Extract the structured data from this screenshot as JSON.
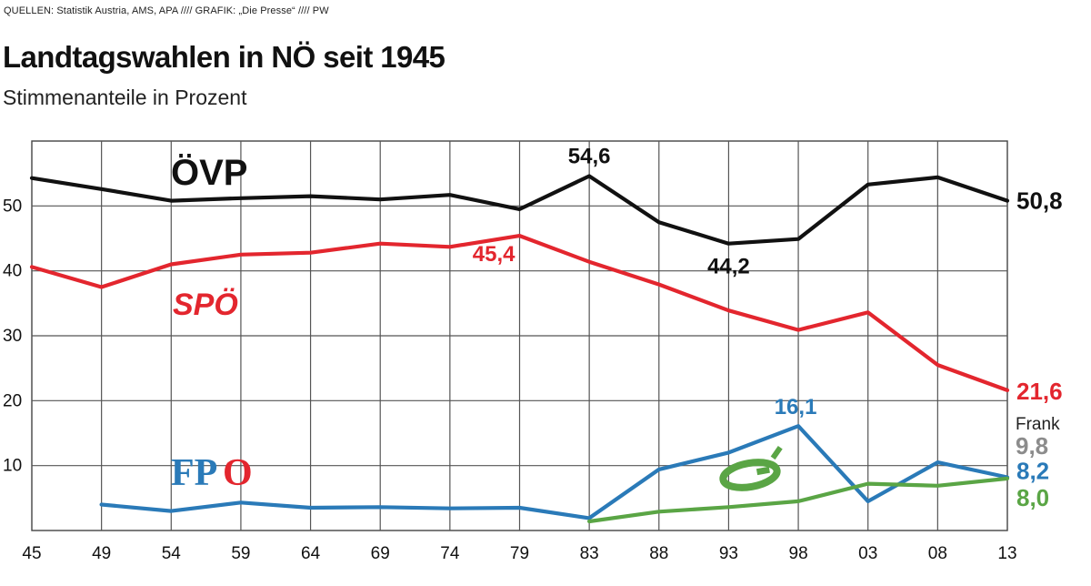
{
  "header": {
    "source": "QUELLEN: Statistik Austria, AMS, APA  ////  GRAFIK: „Die Presse“  ////  PW",
    "title": "Landtagswahlen in NÖ seit 1945",
    "subtitle": "Stimmenanteile in Prozent"
  },
  "chart_data": {
    "type": "line",
    "title": "Landtagswahlen in NÖ seit 1945",
    "subtitle": "Stimmenanteile in Prozent",
    "xlabel": "",
    "ylabel": "",
    "categories": [
      "45",
      "49",
      "54",
      "59",
      "64",
      "69",
      "74",
      "79",
      "83",
      "88",
      "93",
      "98",
      "03",
      "08",
      "13"
    ],
    "y_ticks": [
      "10",
      "20",
      "30",
      "40",
      "50"
    ],
    "ylim": [
      0,
      60
    ],
    "grid": true,
    "series": [
      {
        "name": "ÖVP",
        "color": "#111111",
        "values": [
          54.3,
          52.6,
          50.8,
          51.2,
          51.5,
          51.0,
          51.7,
          49.5,
          54.6,
          47.5,
          44.2,
          44.9,
          53.3,
          54.4,
          50.8
        ]
      },
      {
        "name": "SPÖ",
        "color": "#e3262e",
        "values": [
          40.6,
          37.5,
          41.0,
          42.5,
          42.8,
          44.2,
          43.7,
          45.4,
          41.4,
          37.9,
          33.9,
          30.9,
          33.6,
          25.5,
          21.6
        ]
      },
      {
        "name": "FPÖ",
        "color": "#2a7ab8",
        "values": [
          null,
          4.0,
          3.0,
          4.3,
          3.5,
          3.6,
          3.4,
          3.5,
          1.9,
          9.4,
          12.0,
          16.1,
          4.5,
          10.5,
          8.2
        ]
      },
      {
        "name": "Grüne",
        "color": "#5aa545",
        "values": [
          null,
          null,
          null,
          null,
          null,
          null,
          null,
          null,
          1.4,
          2.9,
          3.6,
          4.5,
          7.2,
          6.9,
          8.0
        ]
      }
    ],
    "annotations": [
      {
        "text": "54,6",
        "series": "ÖVP",
        "category": "83"
      },
      {
        "text": "44,2",
        "series": "ÖVP",
        "category": "93"
      },
      {
        "text": "50,8",
        "series": "ÖVP",
        "category": "13"
      },
      {
        "text": "45,4",
        "series": "SPÖ",
        "category": "79"
      },
      {
        "text": "21,6",
        "series": "SPÖ",
        "category": "13"
      },
      {
        "text": "16,1",
        "series": "FPÖ",
        "category": "98"
      },
      {
        "text": "Frank",
        "series": "Frank",
        "category": "13"
      },
      {
        "text": "9,8",
        "series": "Frank",
        "category": "13"
      },
      {
        "text": "8,2",
        "series": "FPÖ",
        "category": "13"
      },
      {
        "text": "8,0",
        "series": "Grüne",
        "category": "13"
      }
    ],
    "series_labels": {
      "oevp": "ÖVP",
      "spoe": "SPÖ",
      "fpoe_fp": "FP",
      "fpoe_o": "O"
    },
    "frank_color": "#8c8c8c",
    "green_logo": "greens-logo-icon"
  }
}
